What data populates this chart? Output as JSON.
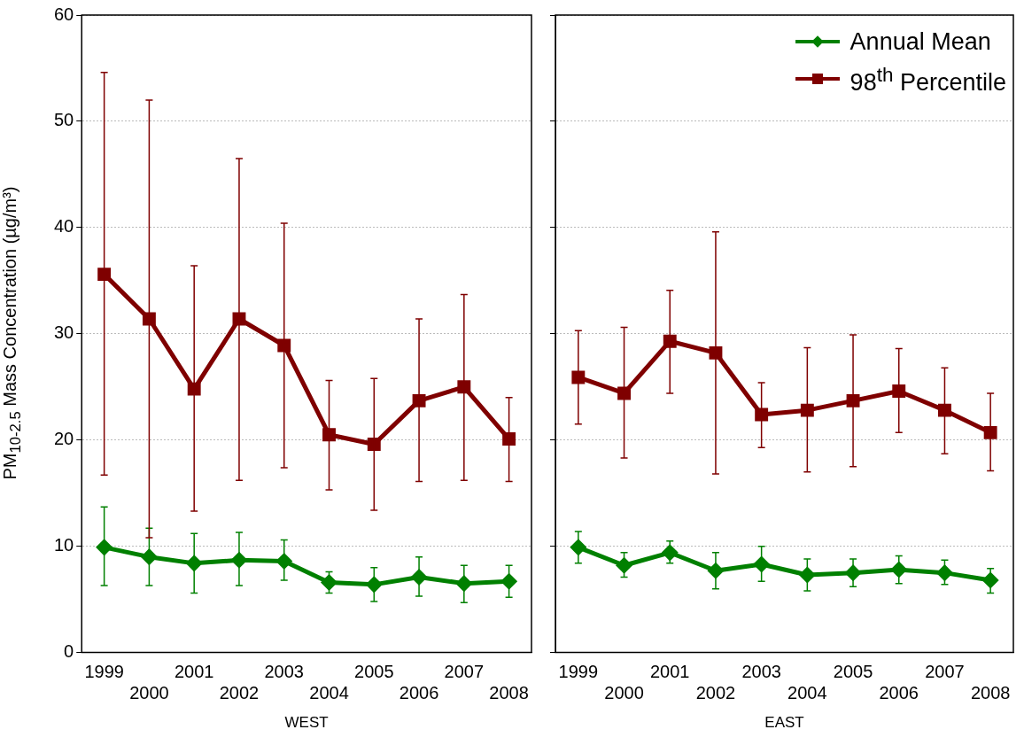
{
  "chart_data": [
    {
      "type": "line",
      "xlabel": "WEST",
      "ylabel": "PM$_{10-2.5}$ Mass Concentration (µg/m³)",
      "categories": [
        "1999",
        "2000",
        "2001",
        "2002",
        "2003",
        "2004",
        "2005",
        "2006",
        "2007",
        "2008"
      ],
      "ylim": [
        0,
        60
      ],
      "yticks": [
        0,
        10,
        20,
        30,
        40,
        50,
        60
      ],
      "grid": "y",
      "series": [
        {
          "color": "#008000",
          "marker": "diamond",
          "values": [
            9.9,
            9.0,
            8.4,
            8.7,
            8.6,
            6.6,
            6.4,
            7.1,
            6.5,
            6.7
          ],
          "errors": [
            [
              6.3,
              13.7
            ],
            [
              6.3,
              11.7
            ],
            [
              5.6,
              11.2
            ],
            [
              6.3,
              11.3
            ],
            [
              6.8,
              10.6
            ],
            [
              5.6,
              7.6
            ],
            [
              4.8,
              8.0
            ],
            [
              5.3,
              9.0
            ],
            [
              4.7,
              8.2
            ],
            [
              5.2,
              8.2
            ]
          ]
        },
        {
          "color": "#7f0000",
          "marker": "square",
          "values": [
            35.6,
            31.4,
            24.8,
            31.4,
            28.9,
            20.5,
            19.6,
            23.7,
            25.0,
            20.1
          ],
          "errors": [
            [
              16.7,
              54.6
            ],
            [
              10.8,
              52.0
            ],
            [
              13.3,
              36.4
            ],
            [
              16.2,
              46.5
            ],
            [
              17.4,
              40.4
            ],
            [
              15.3,
              25.6
            ],
            [
              13.4,
              25.8
            ],
            [
              16.1,
              31.4
            ],
            [
              16.2,
              33.7
            ],
            [
              16.1,
              24.0
            ]
          ]
        }
      ]
    },
    {
      "type": "line",
      "xlabel": "EAST",
      "categories": [
        "1999",
        "2000",
        "2001",
        "2002",
        "2003",
        "2004",
        "2005",
        "2006",
        "2007",
        "2008"
      ],
      "ylim": [
        0,
        60
      ],
      "yticks": [
        0,
        10,
        20,
        30,
        40,
        50,
        60
      ],
      "grid": "y",
      "tick_labels": "x",
      "legend": "top right",
      "series": [
        {
          "name": "Annual Mean",
          "color": "#008000",
          "marker": "diamond",
          "values": [
            9.9,
            8.2,
            9.4,
            7.7,
            8.3,
            7.3,
            7.5,
            7.8,
            7.5,
            6.8
          ],
          "errors": [
            [
              8.4,
              11.4
            ],
            [
              7.1,
              9.4
            ],
            [
              8.4,
              10.5
            ],
            [
              6.0,
              9.4
            ],
            [
              6.7,
              10.0
            ],
            [
              5.8,
              8.8
            ],
            [
              6.2,
              8.8
            ],
            [
              6.5,
              9.1
            ],
            [
              6.4,
              8.7
            ],
            [
              5.6,
              7.9
            ]
          ]
        },
        {
          "name": "98$^{th}$ Percentile",
          "color": "#7f0000",
          "marker": "square",
          "values": [
            25.9,
            24.4,
            29.3,
            28.2,
            22.4,
            22.8,
            23.7,
            24.6,
            22.8,
            20.7
          ],
          "errors": [
            [
              21.5,
              30.3
            ],
            [
              18.3,
              30.6
            ],
            [
              24.4,
              34.1
            ],
            [
              16.8,
              39.6
            ],
            [
              19.3,
              25.4
            ],
            [
              17.0,
              28.7
            ],
            [
              17.5,
              29.9
            ],
            [
              20.7,
              28.6
            ],
            [
              18.7,
              26.8
            ],
            [
              17.1,
              24.4
            ]
          ]
        }
      ]
    }
  ]
}
